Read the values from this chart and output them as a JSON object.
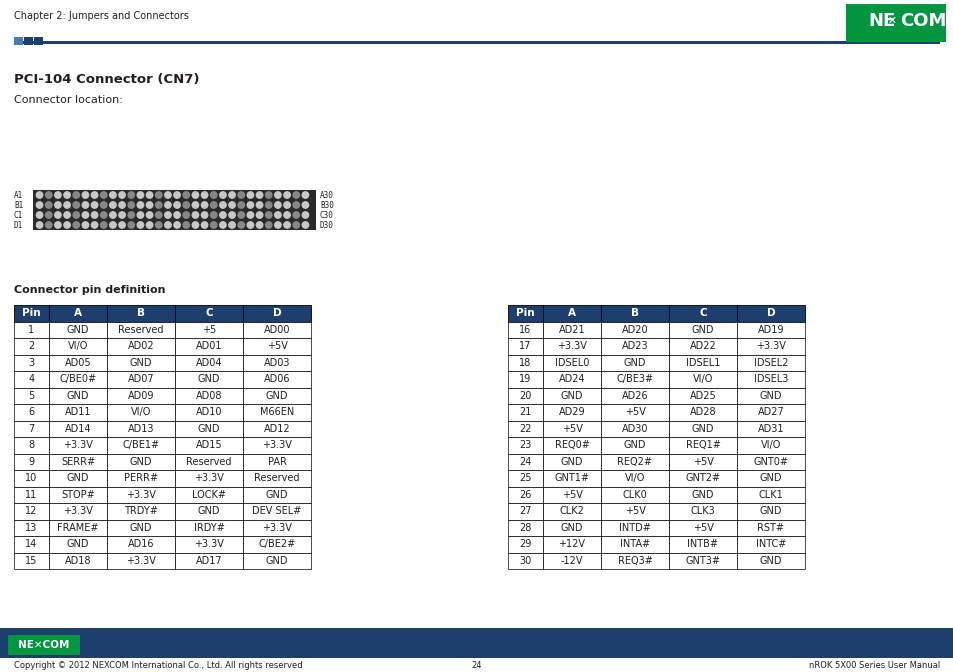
{
  "title_text": "Chapter 2: Jumpers and Connectors",
  "section_title": "PCI-104 Connector (CN7)",
  "connector_label": "Connector location:",
  "pin_def_label": "Connector pin definition",
  "footer_left": "Copyright © 2012 NEXCOM International Co., Ltd. All rights reserved",
  "footer_center": "24",
  "footer_right": "nROK 5X00 Series User Manual",
  "table1_headers": [
    "Pin",
    "A",
    "B",
    "C",
    "D"
  ],
  "table1_data": [
    [
      "1",
      "GND",
      "Reserved",
      "+5",
      "AD00"
    ],
    [
      "2",
      "VI/O",
      "AD02",
      "AD01",
      "+5V"
    ],
    [
      "3",
      "AD05",
      "GND",
      "AD04",
      "AD03"
    ],
    [
      "4",
      "C/BE0#",
      "AD07",
      "GND",
      "AD06"
    ],
    [
      "5",
      "GND",
      "AD09",
      "AD08",
      "GND"
    ],
    [
      "6",
      "AD11",
      "VI/O",
      "AD10",
      "M66EN"
    ],
    [
      "7",
      "AD14",
      "AD13",
      "GND",
      "AD12"
    ],
    [
      "8",
      "+3.3V",
      "C/BE1#",
      "AD15",
      "+3.3V"
    ],
    [
      "9",
      "SERR#",
      "GND",
      "Reserved",
      "PAR"
    ],
    [
      "10",
      "GND",
      "PERR#",
      "+3.3V",
      "Reserved"
    ],
    [
      "11",
      "STOP#",
      "+3.3V",
      "LOCK#",
      "GND"
    ],
    [
      "12",
      "+3.3V",
      "TRDY#",
      "GND",
      "DEV SEL#"
    ],
    [
      "13",
      "FRAME#",
      "GND",
      "IRDY#",
      "+3.3V"
    ],
    [
      "14",
      "GND",
      "AD16",
      "+3.3V",
      "C/BE2#"
    ],
    [
      "15",
      "AD18",
      "+3.3V",
      "AD17",
      "GND"
    ]
  ],
  "table2_headers": [
    "Pin",
    "A",
    "B",
    "C",
    "D"
  ],
  "table2_data": [
    [
      "16",
      "AD21",
      "AD20",
      "GND",
      "AD19"
    ],
    [
      "17",
      "+3.3V",
      "AD23",
      "AD22",
      "+3.3V"
    ],
    [
      "18",
      "IDSEL0",
      "GND",
      "IDSEL1",
      "IDSEL2"
    ],
    [
      "19",
      "AD24",
      "C/BE3#",
      "VI/O",
      "IDSEL3"
    ],
    [
      "20",
      "GND",
      "AD26",
      "AD25",
      "GND"
    ],
    [
      "21",
      "AD29",
      "+5V",
      "AD28",
      "AD27"
    ],
    [
      "22",
      "+5V",
      "AD30",
      "GND",
      "AD31"
    ],
    [
      "23",
      "REQ0#",
      "GND",
      "REQ1#",
      "VI/O"
    ],
    [
      "24",
      "GND",
      "REQ2#",
      "+5V",
      "GNT0#"
    ],
    [
      "25",
      "GNT1#",
      "VI/O",
      "GNT2#",
      "GND"
    ],
    [
      "26",
      "+5V",
      "CLK0",
      "GND",
      "CLK1"
    ],
    [
      "27",
      "CLK2",
      "+5V",
      "CLK3",
      "GND"
    ],
    [
      "28",
      "GND",
      "INTD#",
      "+5V",
      "RST#"
    ],
    [
      "29",
      "+12V",
      "INTA#",
      "INTB#",
      "INTC#"
    ],
    [
      "30",
      "-12V",
      "REQ3#",
      "GNT3#",
      "GND"
    ]
  ],
  "nexcom_green": "#009640",
  "nexcom_blue": "#1c3f6e",
  "header_bg": "#1c3f6e",
  "white": "#ffffff",
  "black": "#000000",
  "text_dark": "#231f20",
  "text_gray": "#58595b"
}
